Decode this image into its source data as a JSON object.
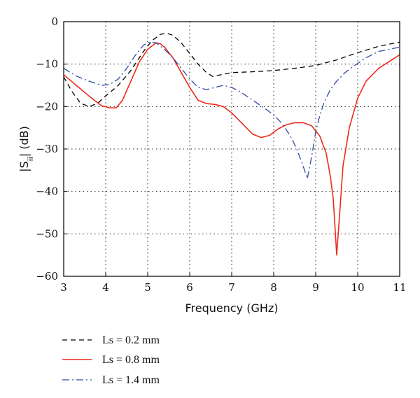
{
  "chart_data": {
    "type": "line",
    "title": "",
    "xlabel": "Frequency (GHz)",
    "ylabel": {
      "prefix": "|S",
      "sub": "ii",
      "suffix": "| (dB)"
    },
    "xlim": [
      3,
      11
    ],
    "ylim": [
      -60,
      0
    ],
    "xticks": [
      3,
      4,
      5,
      6,
      7,
      8,
      9,
      10,
      11
    ],
    "yticks": [
      0,
      -10,
      -20,
      -30,
      -40,
      -50,
      -60
    ],
    "grid": true,
    "legend_position": "bottom-left, below plot",
    "series": [
      {
        "name": "Ls = 0.2 mm",
        "color": "#000000",
        "style": "dashed",
        "x": [
          3.0,
          3.2,
          3.4,
          3.6,
          3.8,
          4.0,
          4.3,
          4.6,
          4.9,
          5.1,
          5.3,
          5.45,
          5.6,
          5.8,
          6.0,
          6.2,
          6.4,
          6.55,
          6.7,
          7.0,
          7.5,
          8.0,
          8.5,
          9.0,
          9.5,
          10.0,
          10.5,
          11.0
        ],
        "y": [
          -13.0,
          -16.5,
          -19.2,
          -20.0,
          -19.3,
          -17.5,
          -15.0,
          -11.5,
          -7.0,
          -4.5,
          -3.0,
          -2.7,
          -3.2,
          -5.0,
          -7.5,
          -10.0,
          -12.0,
          -12.9,
          -12.6,
          -12.0,
          -11.8,
          -11.5,
          -11.0,
          -10.3,
          -9.0,
          -7.3,
          -5.8,
          -4.8
        ]
      },
      {
        "name": "Ls = 0.8 mm",
        "color": "#ee2a1b",
        "style": "solid",
        "x": [
          3.0,
          3.3,
          3.6,
          3.9,
          4.1,
          4.25,
          4.4,
          4.6,
          4.8,
          5.0,
          5.2,
          5.3,
          5.4,
          5.6,
          5.8,
          6.0,
          6.2,
          6.4,
          6.6,
          6.8,
          7.0,
          7.2,
          7.5,
          7.7,
          7.9,
          8.1,
          8.3,
          8.5,
          8.7,
          8.9,
          9.1,
          9.25,
          9.35,
          9.42,
          9.5,
          9.58,
          9.65,
          9.8,
          10.0,
          10.2,
          10.5,
          11.0
        ],
        "y": [
          -12.5,
          -15.0,
          -17.5,
          -19.8,
          -20.3,
          -20.3,
          -18.5,
          -14.0,
          -9.5,
          -6.5,
          -5.0,
          -5.2,
          -6.0,
          -8.5,
          -12.0,
          -15.5,
          -18.5,
          -19.3,
          -19.5,
          -20.0,
          -21.5,
          -23.5,
          -26.5,
          -27.3,
          -26.8,
          -25.3,
          -24.3,
          -23.8,
          -23.8,
          -24.5,
          -27.0,
          -31.0,
          -36.5,
          -42.0,
          -55.0,
          -44.0,
          -34.0,
          -25.0,
          -18.0,
          -14.0,
          -11.0,
          -7.8
        ]
      },
      {
        "name": "Ls = 1.4 mm",
        "color": "#2f4aa8",
        "style": "dashdot",
        "x": [
          3.0,
          3.3,
          3.6,
          3.9,
          4.1,
          4.3,
          4.5,
          4.7,
          4.9,
          5.05,
          5.2,
          5.4,
          5.6,
          5.8,
          6.0,
          6.2,
          6.4,
          6.6,
          6.8,
          7.0,
          7.2,
          7.5,
          7.8,
          8.0,
          8.2,
          8.4,
          8.55,
          8.7,
          8.8,
          8.9,
          9.0,
          9.1,
          9.2,
          9.35,
          9.5,
          9.7,
          9.9,
          10.2,
          10.5,
          11.0
        ],
        "y": [
          -11.0,
          -12.8,
          -14.0,
          -15.0,
          -14.8,
          -13.5,
          -11.0,
          -8.0,
          -5.5,
          -4.8,
          -5.0,
          -6.5,
          -8.5,
          -11.0,
          -13.5,
          -15.5,
          -16.0,
          -15.5,
          -15.0,
          -15.5,
          -16.5,
          -18.5,
          -20.5,
          -22.0,
          -24.0,
          -27.0,
          -30.0,
          -34.0,
          -37.0,
          -32.0,
          -26.0,
          -22.0,
          -19.0,
          -16.0,
          -14.0,
          -12.0,
          -10.5,
          -8.5,
          -7.0,
          -6.0
        ]
      }
    ]
  }
}
